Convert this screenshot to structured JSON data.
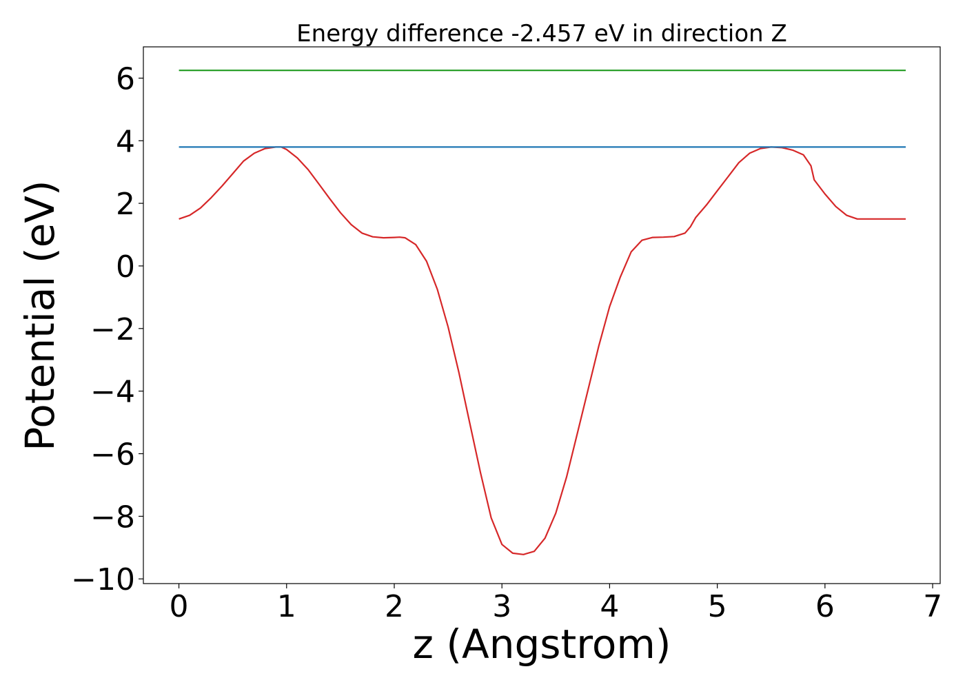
{
  "chart_data": {
    "type": "line",
    "title": "Energy difference -2.457 eV in direction Z",
    "xlabel": "z (Angstrom)",
    "ylabel": "Potential (eV)",
    "xlim": [
      -0.33,
      7.07
    ],
    "ylim": [
      -10.15,
      7.0
    ],
    "xticks": [
      0,
      1,
      2,
      3,
      4,
      5,
      6,
      7
    ],
    "xtick_labels": [
      "0",
      "1",
      "2",
      "3",
      "4",
      "5",
      "6",
      "7"
    ],
    "yticks": [
      6,
      4,
      2,
      0,
      -2,
      -4,
      -6,
      -8,
      -10
    ],
    "ytick_labels": [
      "6",
      "4",
      "2",
      "0",
      "−2",
      "−4",
      "−6",
      "−8",
      "−10"
    ],
    "grid": false,
    "series": [
      {
        "color": "#d62728",
        "x": [
          0.0,
          0.1,
          0.2,
          0.3,
          0.4,
          0.5,
          0.6,
          0.7,
          0.8,
          0.9,
          0.95,
          1.0,
          1.1,
          1.2,
          1.3,
          1.4,
          1.5,
          1.6,
          1.7,
          1.8,
          1.9,
          2.0,
          2.05,
          2.1,
          2.2,
          2.3,
          2.4,
          2.5,
          2.6,
          2.7,
          2.8,
          2.9,
          3.0,
          3.1,
          3.2,
          3.3,
          3.4,
          3.5,
          3.6,
          3.7,
          3.8,
          3.9,
          4.0,
          4.1,
          4.2,
          4.3,
          4.4,
          4.5,
          4.6,
          4.7,
          4.75,
          4.8,
          4.9,
          5.0,
          5.1,
          5.2,
          5.3,
          5.4,
          5.5,
          5.6,
          5.7,
          5.8,
          5.87,
          5.9,
          6.0,
          6.1,
          6.2,
          6.3,
          6.4,
          6.5,
          6.6,
          6.75
        ],
        "y": [
          1.5,
          1.62,
          1.85,
          2.18,
          2.55,
          2.95,
          3.35,
          3.6,
          3.75,
          3.8,
          3.8,
          3.72,
          3.45,
          3.08,
          2.62,
          2.15,
          1.7,
          1.32,
          1.05,
          0.93,
          0.9,
          0.91,
          0.92,
          0.9,
          0.68,
          0.15,
          -0.75,
          -1.95,
          -3.4,
          -5.0,
          -6.6,
          -8.05,
          -8.9,
          -9.18,
          -9.22,
          -9.12,
          -8.7,
          -7.9,
          -6.75,
          -5.35,
          -3.95,
          -2.55,
          -1.3,
          -0.35,
          0.45,
          0.82,
          0.91,
          0.92,
          0.94,
          1.05,
          1.25,
          1.55,
          1.95,
          2.4,
          2.85,
          3.3,
          3.6,
          3.75,
          3.8,
          3.78,
          3.7,
          3.55,
          3.2,
          2.75,
          2.3,
          1.9,
          1.62,
          1.5,
          1.5,
          1.5,
          1.5,
          1.5
        ]
      },
      {
        "color": "#1f77b4",
        "x": [
          0.0,
          6.75
        ],
        "y": [
          3.8,
          3.8
        ]
      },
      {
        "color": "#2ca02c",
        "x": [
          0.0,
          6.75
        ],
        "y": [
          6.25,
          6.25
        ]
      }
    ]
  }
}
